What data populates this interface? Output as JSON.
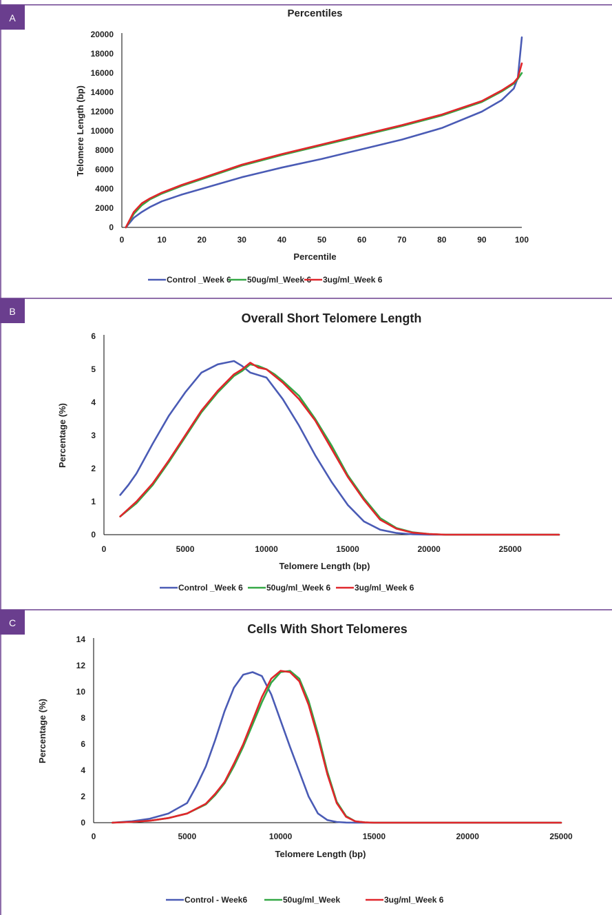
{
  "colors": {
    "frame": "#6a3e8e",
    "badge": "#6a3e8e",
    "control": "#4a5bb5",
    "ug50": "#33a845",
    "ug3": "#e0262b",
    "axis": "#000000"
  },
  "chart_data": [
    {
      "panel": "A",
      "type": "line",
      "title": "Percentiles",
      "xlabel": "Percentile",
      "ylabel": "Telomere Length (bp)",
      "xlim": [
        0,
        100
      ],
      "ylim": [
        0,
        20000
      ],
      "xticks": [
        0,
        10,
        20,
        30,
        40,
        50,
        60,
        70,
        80,
        90,
        100
      ],
      "yticks": [
        0,
        2000,
        4000,
        6000,
        8000,
        10000,
        12000,
        14000,
        16000,
        18000,
        20000
      ],
      "legend_position": "bottom",
      "series": [
        {
          "name": "Control _Week 6",
          "color": "#4a5bb5",
          "x": [
            1,
            2,
            3,
            5,
            7,
            10,
            15,
            20,
            30,
            40,
            50,
            60,
            70,
            80,
            90,
            95,
            98,
            99,
            100
          ],
          "y": [
            0,
            500,
            1000,
            1600,
            2100,
            2700,
            3400,
            4000,
            5200,
            6200,
            7100,
            8100,
            9100,
            10300,
            12000,
            13200,
            14400,
            15500,
            19700
          ]
        },
        {
          "name": "50ug/ml_Week 6",
          "color": "#33a845",
          "x": [
            1,
            2,
            3,
            5,
            7,
            10,
            15,
            20,
            30,
            40,
            50,
            60,
            70,
            80,
            90,
            95,
            98,
            99,
            100
          ],
          "y": [
            0,
            700,
            1400,
            2300,
            2900,
            3500,
            4300,
            5000,
            6400,
            7500,
            8500,
            9500,
            10500,
            11600,
            13000,
            14100,
            14900,
            15400,
            16000
          ]
        },
        {
          "name": "3ug/ml_Week 6",
          "color": "#e0262b",
          "x": [
            1,
            2,
            3,
            5,
            7,
            10,
            15,
            20,
            30,
            40,
            50,
            60,
            70,
            80,
            90,
            95,
            98,
            99,
            100
          ],
          "y": [
            0,
            800,
            1600,
            2500,
            3000,
            3600,
            4400,
            5100,
            6500,
            7600,
            8600,
            9600,
            10600,
            11700,
            13100,
            14200,
            15000,
            15500,
            17000
          ]
        }
      ]
    },
    {
      "panel": "B",
      "type": "line",
      "title": "Overall Short Telomere Length",
      "xlabel": "Telomere Length (bp)",
      "ylabel": "Percentage (%)",
      "xlim": [
        0,
        28000
      ],
      "ylim": [
        0,
        6
      ],
      "xticks": [
        0,
        5000,
        10000,
        15000,
        20000,
        25000
      ],
      "yticks": [
        0,
        1,
        2,
        3,
        4,
        5,
        6
      ],
      "legend_position": "bottom",
      "series": [
        {
          "name": "Control _Week 6",
          "color": "#4a5bb5",
          "x": [
            1000,
            1500,
            2000,
            2500,
            3000,
            4000,
            5000,
            6000,
            7000,
            7500,
            8000,
            8500,
            9000,
            10000,
            11000,
            12000,
            13000,
            14000,
            15000,
            16000,
            17000,
            18000,
            19000,
            20000,
            28000
          ],
          "y": [
            1.2,
            1.5,
            1.85,
            2.3,
            2.75,
            3.6,
            4.3,
            4.9,
            5.15,
            5.2,
            5.25,
            5.1,
            4.9,
            4.75,
            4.1,
            3.3,
            2.4,
            1.6,
            0.9,
            0.4,
            0.15,
            0.05,
            0.01,
            0,
            0
          ]
        },
        {
          "name": "50ug/ml_Week 6",
          "color": "#33a845",
          "x": [
            1000,
            2000,
            3000,
            4000,
            5000,
            6000,
            7000,
            8000,
            8500,
            9000,
            9500,
            10000,
            10500,
            11000,
            12000,
            13000,
            14000,
            15000,
            16000,
            17000,
            18000,
            19000,
            20000,
            21000,
            28000
          ],
          "y": [
            0.55,
            0.95,
            1.5,
            2.2,
            2.95,
            3.7,
            4.3,
            4.8,
            4.95,
            5.15,
            5.1,
            5.0,
            4.85,
            4.65,
            4.2,
            3.5,
            2.7,
            1.8,
            1.1,
            0.5,
            0.2,
            0.07,
            0.02,
            0,
            0
          ]
        },
        {
          "name": "3ug/ml_Week 6",
          "color": "#e0262b",
          "x": [
            1000,
            2000,
            3000,
            4000,
            5000,
            6000,
            7000,
            8000,
            8500,
            9000,
            9500,
            10000,
            10500,
            11000,
            12000,
            13000,
            14000,
            15000,
            16000,
            17000,
            18000,
            19000,
            20000,
            21000,
            28000
          ],
          "y": [
            0.55,
            1.0,
            1.55,
            2.25,
            3.0,
            3.75,
            4.35,
            4.85,
            5.0,
            5.2,
            5.05,
            5.0,
            4.8,
            4.6,
            4.1,
            3.45,
            2.6,
            1.75,
            1.05,
            0.45,
            0.18,
            0.06,
            0.02,
            0,
            0
          ]
        }
      ]
    },
    {
      "panel": "C",
      "type": "line",
      "title": "Cells With Short Telomeres",
      "xlabel": "Telomere Length (bp)",
      "ylabel": "Percentage (%)",
      "xlim": [
        0,
        25000
      ],
      "ylim": [
        0,
        14
      ],
      "xticks": [
        0,
        5000,
        10000,
        15000,
        20000,
        25000
      ],
      "yticks": [
        0,
        2,
        4,
        6,
        8,
        10,
        12,
        14
      ],
      "legend_position": "bottom",
      "series": [
        {
          "name": "Control - Week6",
          "color": "#4a5bb5",
          "x": [
            1000,
            2000,
            3000,
            4000,
            5000,
            5500,
            6000,
            6500,
            7000,
            7500,
            8000,
            8500,
            9000,
            9500,
            10000,
            10500,
            11000,
            11500,
            12000,
            12500,
            13000,
            13500,
            14000,
            15000,
            25000
          ],
          "y": [
            0,
            0.1,
            0.3,
            0.7,
            1.5,
            2.8,
            4.3,
            6.3,
            8.5,
            10.3,
            11.3,
            11.5,
            11.2,
            9.8,
            7.8,
            5.8,
            3.9,
            2.0,
            0.7,
            0.2,
            0.05,
            0.01,
            0,
            0,
            0
          ]
        },
        {
          "name": "50ug/ml_Week",
          "color": "#33a845",
          "x": [
            1000,
            2000,
            3000,
            4000,
            5000,
            6000,
            6500,
            7000,
            7500,
            8000,
            8500,
            9000,
            9500,
            10000,
            10500,
            11000,
            11500,
            12000,
            12500,
            13000,
            13500,
            14000,
            14500,
            15000,
            25000
          ],
          "y": [
            0,
            0.05,
            0.15,
            0.35,
            0.7,
            1.4,
            2.1,
            3.0,
            4.3,
            5.8,
            7.5,
            9.2,
            10.7,
            11.5,
            11.6,
            11.0,
            9.3,
            6.8,
            3.9,
            1.6,
            0.5,
            0.1,
            0.02,
            0,
            0
          ]
        },
        {
          "name": "3ug/ml_Week 6",
          "color": "#e0262b",
          "x": [
            1000,
            2000,
            3000,
            4000,
            5000,
            6000,
            6500,
            7000,
            7500,
            8000,
            8500,
            9000,
            9500,
            10000,
            10500,
            11000,
            11500,
            12000,
            12500,
            13000,
            13500,
            14000,
            14500,
            15000,
            25000
          ],
          "y": [
            0,
            0.05,
            0.15,
            0.35,
            0.7,
            1.45,
            2.2,
            3.1,
            4.5,
            6.0,
            7.8,
            9.6,
            11.0,
            11.6,
            11.5,
            10.8,
            9.0,
            6.5,
            3.7,
            1.5,
            0.45,
            0.1,
            0.02,
            0,
            0
          ]
        }
      ]
    }
  ]
}
